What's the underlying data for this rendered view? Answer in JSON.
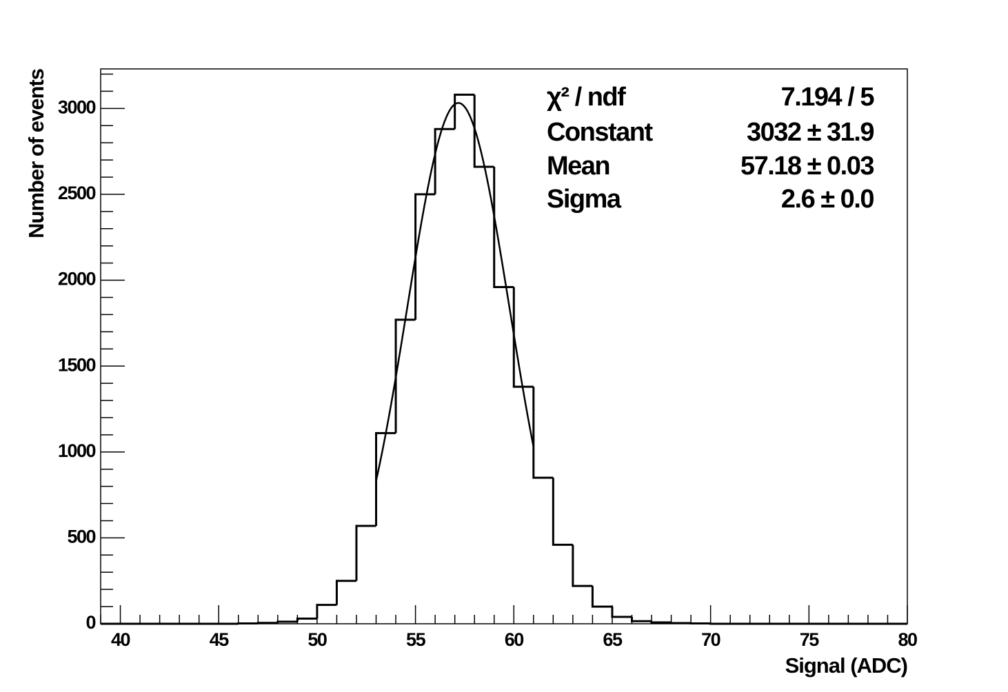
{
  "chart_data": {
    "type": "histogram",
    "xlabel": "Signal (ADC)",
    "ylabel": "Number of events",
    "bins": [
      39,
      40,
      41,
      42,
      43,
      44,
      45,
      46,
      47,
      48,
      49,
      50,
      51,
      52,
      53,
      54,
      55,
      56,
      57,
      58,
      59,
      60,
      61,
      62,
      63,
      64,
      65,
      66,
      67,
      68,
      69,
      70,
      71,
      72,
      73,
      74,
      75,
      76,
      77,
      78,
      79,
      80
    ],
    "values": [
      0,
      0,
      0,
      0,
      0,
      0,
      0,
      2,
      5,
      12,
      30,
      110,
      250,
      570,
      1110,
      1770,
      2500,
      2880,
      3080,
      2660,
      1960,
      1380,
      850,
      460,
      220,
      100,
      40,
      15,
      8,
      4,
      2,
      0,
      0,
      0,
      0,
      0,
      0,
      0,
      0,
      0,
      0
    ],
    "color": "#000000",
    "xlim": [
      39,
      80
    ],
    "xticks": [
      40,
      45,
      50,
      55,
      60,
      65,
      70,
      75,
      80
    ],
    "xminorticks": [
      39,
      41,
      42,
      43,
      44,
      46,
      47,
      48,
      49,
      51,
      52,
      53,
      54,
      56,
      57,
      58,
      59,
      61,
      62,
      63,
      64,
      66,
      67,
      68,
      69,
      71,
      72,
      73,
      74,
      76,
      77,
      78,
      79
    ],
    "ylim": [
      0,
      3230
    ],
    "yticks": [
      0,
      500,
      1000,
      1500,
      2000,
      2500,
      3000
    ],
    "yminorticks": [
      100,
      200,
      300,
      400,
      600,
      700,
      800,
      900,
      1100,
      1200,
      1300,
      1400,
      1600,
      1700,
      1800,
      1900,
      2100,
      2200,
      2300,
      2400,
      2600,
      2700,
      2800,
      2900,
      3100,
      3200
    ],
    "fit": {
      "range": [
        53,
        61
      ]
    },
    "stats": [
      {
        "name": "χ² / ndf",
        "label": "7.194 / 5",
        "value": 7.194,
        "error": 5
      },
      {
        "name": "Constant",
        "label": "3032 ± 31.9",
        "value": 3032,
        "error": 31.9
      },
      {
        "name": "Mean",
        "label": "57.18 ± 0.03",
        "value": 57.18,
        "error": 0.03
      },
      {
        "name": "Sigma",
        "label": "2.6 ± 0.0",
        "value": 2.6,
        "error": 0.0
      }
    ]
  }
}
